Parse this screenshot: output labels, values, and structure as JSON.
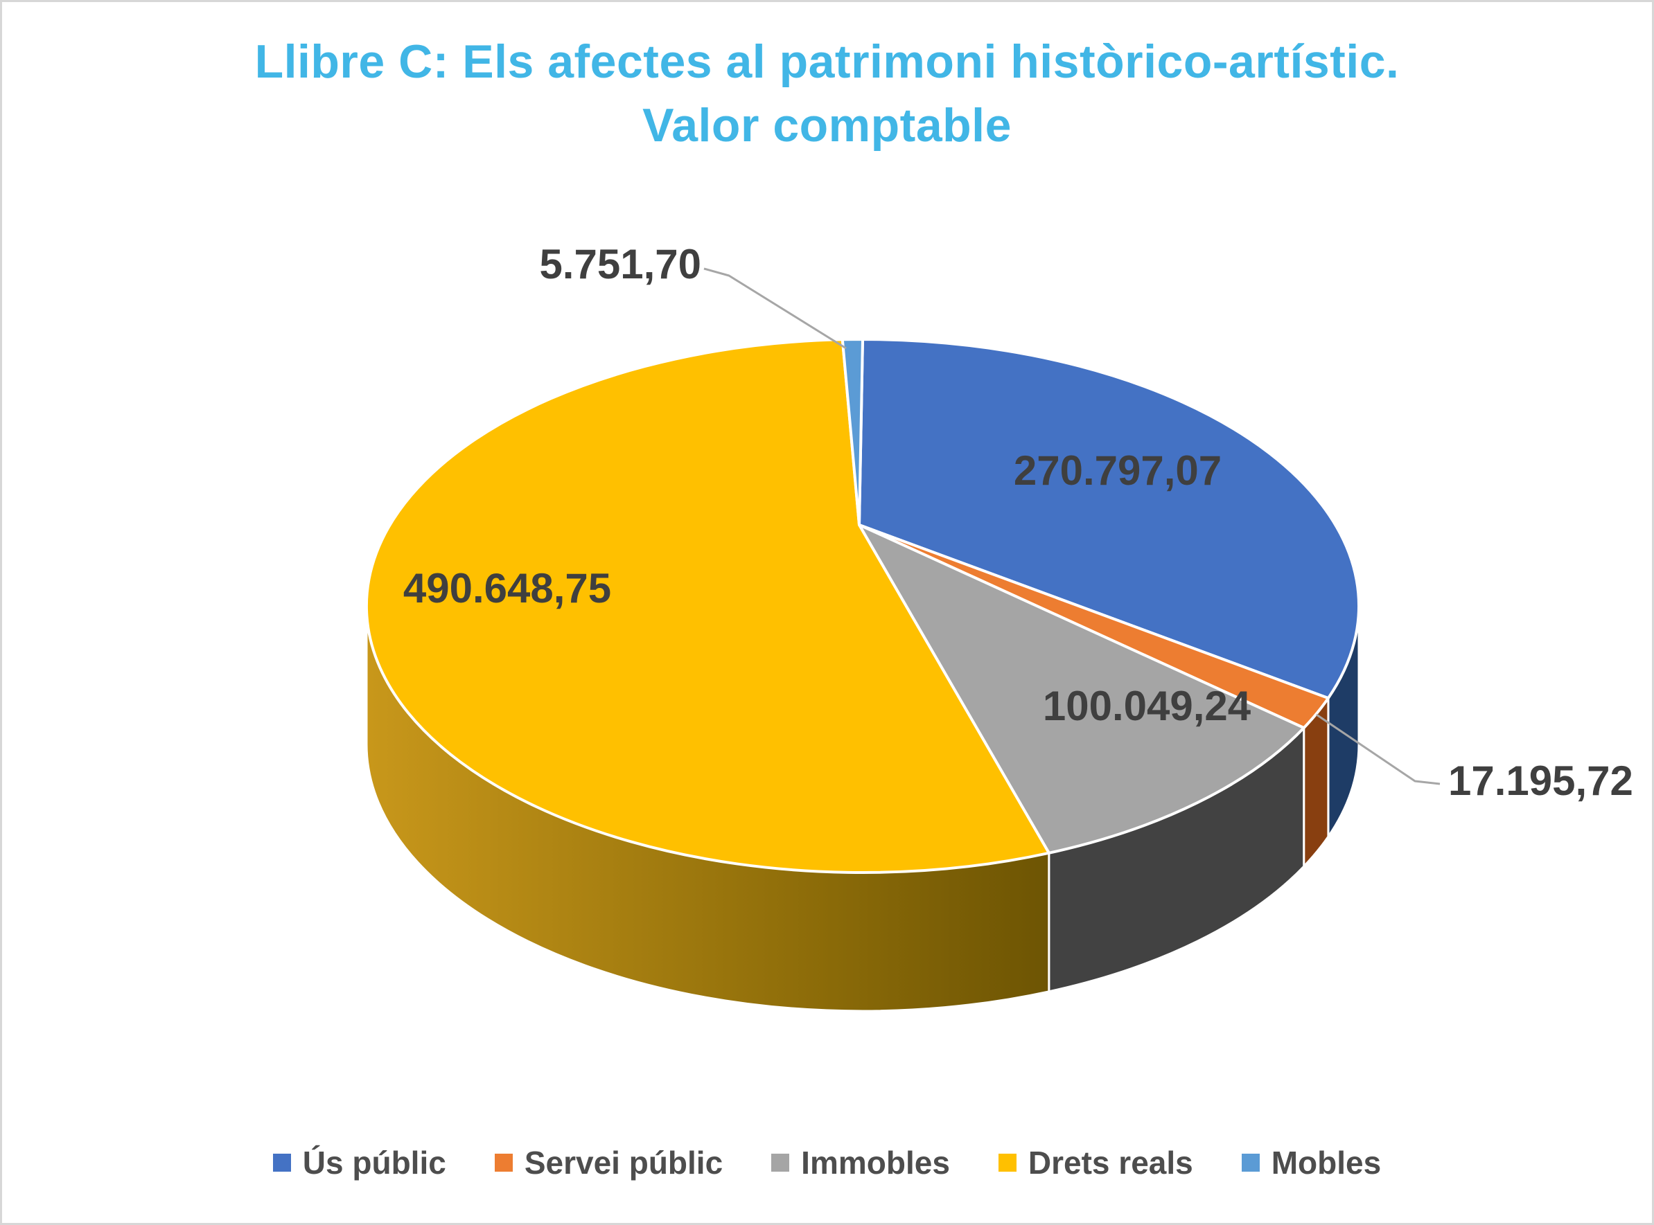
{
  "title": {
    "text": "Llibre C: Els afectes al patrimoni històrico-artístic. Valor comptable",
    "color": "#41b6e6"
  },
  "chart_data": {
    "type": "pie",
    "style": "3d",
    "title": "Llibre C: Els afectes al patrimoni històrico-artístic. Valor comptable",
    "direction": "clockwise",
    "start_angle_deg": 0,
    "legend_position": "bottom",
    "total": 884442.48,
    "label_color": "#3f3f3f",
    "leader_line_color": "#a6a6a6",
    "legend_text_color": "#4d4d4d",
    "series": [
      {
        "name": "Ús públic",
        "value": 270797.07,
        "label": "270.797,07",
        "color": "#4472c4",
        "side_color": "#1e3c66",
        "label_placement": "inside"
      },
      {
        "name": "Servei públic",
        "value": 17195.72,
        "label": "17.195,72",
        "color": "#ed7d31",
        "side_color": "#883f10",
        "label_placement": "outside-right"
      },
      {
        "name": "Immobles",
        "value": 100049.24,
        "label": "100.049,24",
        "color": "#a5a5a5",
        "side_color": "#424242",
        "label_placement": "inside"
      },
      {
        "name": "Drets reals",
        "value": 490648.75,
        "label": "490.648,75",
        "color": "#ffc000",
        "side_gradient": [
          "#c9981b",
          "#8a6a08",
          "#574400"
        ],
        "label_placement": "inside"
      },
      {
        "name": "Mobles",
        "value": 5751.7,
        "label": "5.751,70",
        "color": "#5b9bd5",
        "label_placement": "outside-top"
      }
    ]
  }
}
